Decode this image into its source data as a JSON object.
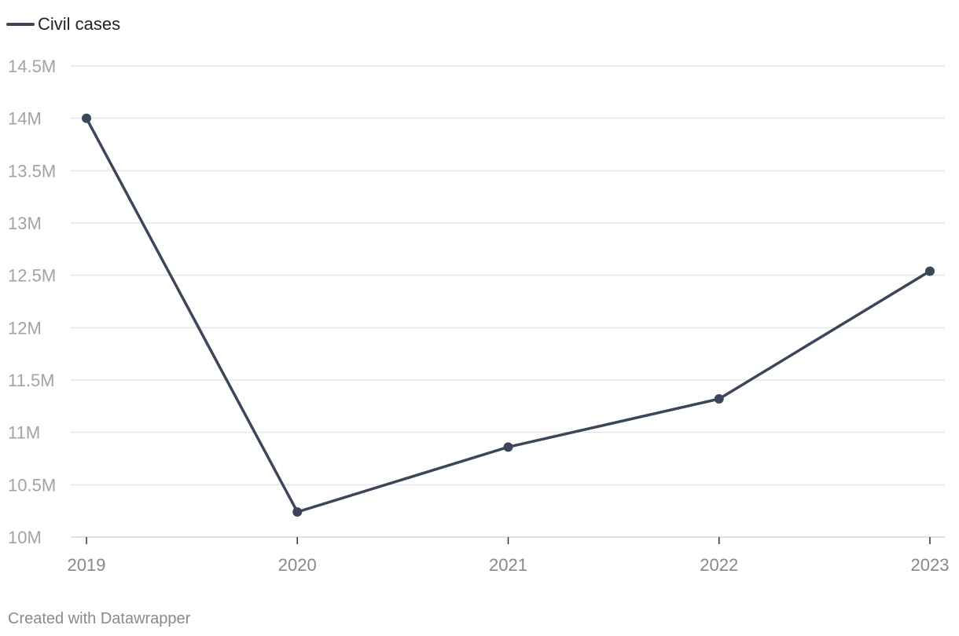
{
  "chart_data": {
    "type": "line",
    "title": "",
    "xlabel": "",
    "ylabel": "",
    "x": [
      "2019",
      "2020",
      "2021",
      "2022",
      "2023"
    ],
    "series": [
      {
        "name": "Civil cases",
        "values": [
          14000000,
          10240000,
          10860000,
          11320000,
          12540000
        ],
        "color": "#3b4759"
      }
    ],
    "ylim": [
      10000000,
      14500000
    ],
    "yticks": [
      10000000,
      10500000,
      11000000,
      11500000,
      12000000,
      12500000,
      13000000,
      13500000,
      14000000,
      14500000
    ],
    "ytick_labels": [
      "10M",
      "10.5M",
      "11M",
      "11.5M",
      "12M",
      "12.5M",
      "13M",
      "13.5M",
      "14M",
      "14.5M"
    ],
    "grid": true,
    "legend_position": "top-left",
    "markers": true
  },
  "credit": "Created with Datawrapper"
}
